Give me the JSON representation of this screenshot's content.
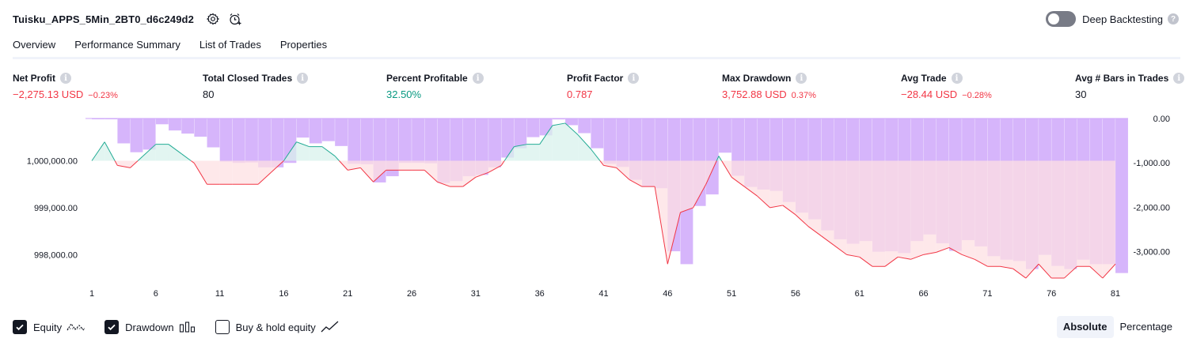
{
  "header": {
    "strategy_title": "Tuisku_APPS_5Min_2BT0_d6c249d2",
    "deep_backtesting_label": "Deep Backtesting",
    "deep_backtesting_enabled": false
  },
  "tabs": [
    {
      "label": "Overview",
      "active": true
    },
    {
      "label": "Performance Summary",
      "active": false
    },
    {
      "label": "List of Trades",
      "active": false
    },
    {
      "label": "Properties",
      "active": false
    }
  ],
  "metrics": [
    {
      "label": "Net Profit",
      "value": "−2,275.13 USD",
      "pct": "−0.23%",
      "tone": "neg"
    },
    {
      "label": "Total Closed Trades",
      "value": "80",
      "pct": "",
      "tone": "neutral"
    },
    {
      "label": "Percent Profitable",
      "value": "32.50%",
      "pct": "",
      "tone": "pos"
    },
    {
      "label": "Profit Factor",
      "value": "0.787",
      "pct": "",
      "tone": "neg"
    },
    {
      "label": "Max Drawdown",
      "value": "3,752.88 USD",
      "pct": "0.37%",
      "tone": "neg"
    },
    {
      "label": "Avg Trade",
      "value": "−28.44 USD",
      "pct": "−0.28%",
      "tone": "neg"
    },
    {
      "label": "Avg # Bars in Trades",
      "value": "30",
      "pct": "",
      "tone": "neutral"
    }
  ],
  "chart_data": {
    "type": "line",
    "x": [
      1,
      2,
      3,
      4,
      5,
      6,
      7,
      8,
      9,
      10,
      11,
      12,
      13,
      14,
      15,
      16,
      17,
      18,
      19,
      20,
      21,
      22,
      23,
      24,
      25,
      26,
      27,
      28,
      29,
      30,
      31,
      32,
      33,
      34,
      35,
      36,
      37,
      38,
      39,
      40,
      41,
      42,
      43,
      44,
      45,
      46,
      47,
      48,
      49,
      50,
      51,
      52,
      53,
      54,
      55,
      56,
      57,
      58,
      59,
      60,
      61,
      62,
      63,
      64,
      65,
      66,
      67,
      68,
      69,
      70,
      71,
      72,
      73,
      74,
      75,
      76,
      77,
      78,
      79,
      80,
      81
    ],
    "x_ticks": [
      "1",
      "6",
      "11",
      "16",
      "21",
      "26",
      "31",
      "36",
      "41",
      "46",
      "51",
      "56",
      "61",
      "66",
      "71",
      "76",
      "81"
    ],
    "equity_baseline": 1000000,
    "series": [
      {
        "name": "Equity",
        "axis": "left",
        "values": [
          1000000,
          1000400,
          999900,
          999850,
          1000100,
          1000350,
          1000350,
          1000150,
          999950,
          999500,
          999500,
          999500,
          999500,
          999500,
          999750,
          1000000,
          1000400,
          1000300,
          1000300,
          1000100,
          999800,
          999850,
          999550,
          999800,
          999800,
          999800,
          999800,
          999550,
          999450,
          999450,
          999650,
          999750,
          999900,
          1000300,
          1000350,
          1000350,
          1000750,
          1000800,
          1000550,
          1000250,
          999900,
          999850,
          999600,
          999450,
          999450,
          997800,
          998900,
          999000,
          999500,
          1000100,
          999650,
          999450,
          999250,
          999000,
          999050,
          998850,
          998600,
          998400,
          998200,
          998000,
          997950,
          997750,
          997750,
          997950,
          997900,
          998000,
          998050,
          998150,
          998000,
          997900,
          997750,
          997750,
          997700,
          997500,
          997800,
          997500,
          997500,
          997750,
          997750,
          997500,
          997800
        ]
      },
      {
        "name": "Drawdown",
        "axis": "right",
        "values": [
          0,
          -10,
          -560,
          -760,
          -700,
          -130,
          -270,
          -340,
          -410,
          -650,
          -970,
          -1000,
          -990,
          -1100,
          -1100,
          -1000,
          -430,
          -560,
          -510,
          -620,
          -1020,
          -1030,
          -1440,
          -1300,
          -1000,
          -1000,
          -1010,
          -1450,
          -1410,
          -1300,
          -1270,
          -1100,
          -880,
          -670,
          -420,
          -380,
          -20,
          -150,
          -330,
          -670,
          -1020,
          -1090,
          -1380,
          -1540,
          -1570,
          -2990,
          -3280,
          -1970,
          -1710,
          -770,
          -1290,
          -1540,
          -1600,
          -1630,
          -1880,
          -2120,
          -2270,
          -2520,
          -2720,
          -2820,
          -2760,
          -3000,
          -2990,
          -3030,
          -2760,
          -2610,
          -2810,
          -2980,
          -2740,
          -2880,
          -3100,
          -3180,
          -3210,
          -3390,
          -3070,
          -3320,
          -3390,
          -3180,
          -3280,
          -3280,
          -3480
        ]
      }
    ],
    "left_axis_ticks": [
      "1,000,000.00",
      "999,000.00",
      "998,000.00"
    ],
    "left_axis_values": [
      1000000,
      999000,
      998000
    ],
    "right_axis_ticks": [
      "0.00",
      "-1,000.00",
      "-2,000.00",
      "-3,000.00"
    ],
    "right_axis_values": [
      0,
      -1000,
      -2000,
      -3000
    ],
    "ylim_left": [
      997400,
      1000900
    ],
    "ylim_right": [
      -3700,
      0
    ],
    "colors": {
      "equity_up_line": "#22ab94",
      "equity_down_line": "#f23645",
      "equity_up_fill": "#d8f1ec",
      "equity_down_fill": "#fde0e3",
      "drawdown_bar": "#d6b5fb",
      "drawdown_bar_top": "#cda4f9"
    }
  },
  "legend": [
    {
      "label": "Equity",
      "checked": true,
      "glyph": "equity-line-icon"
    },
    {
      "label": "Drawdown",
      "checked": true,
      "glyph": "drawdown-bars-icon"
    },
    {
      "label": "Buy & hold equity",
      "checked": false,
      "glyph": "buy-hold-line-icon"
    }
  ],
  "modes": [
    {
      "label": "Absolute",
      "active": true
    },
    {
      "label": "Percentage",
      "active": false
    }
  ]
}
